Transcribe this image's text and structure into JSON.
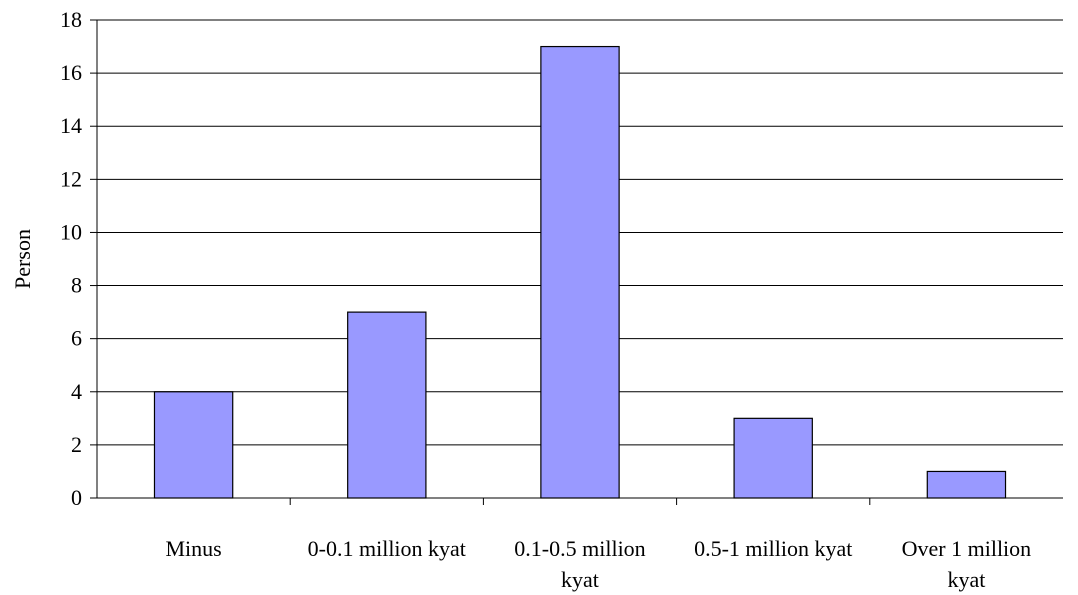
{
  "chart_data": {
    "type": "bar",
    "title": "",
    "xlabel": "",
    "ylabel": "Person",
    "categories": [
      [
        "Minus"
      ],
      [
        "0-0.1 million kyat"
      ],
      [
        "0.1-0.5 million",
        "kyat"
      ],
      [
        "0.5-1 million kyat"
      ],
      [
        "Over 1 million",
        "kyat"
      ]
    ],
    "values": [
      4,
      7,
      17,
      3,
      1
    ],
    "ylim": [
      0,
      18
    ],
    "yticks": [
      0,
      2,
      4,
      6,
      8,
      10,
      12,
      14,
      16,
      18
    ],
    "grid": true,
    "legend": "none",
    "colors": {
      "bar_fill": "#9999ff",
      "bar_stroke": "#000000",
      "grid": "#000000",
      "axis": "#000000"
    }
  }
}
